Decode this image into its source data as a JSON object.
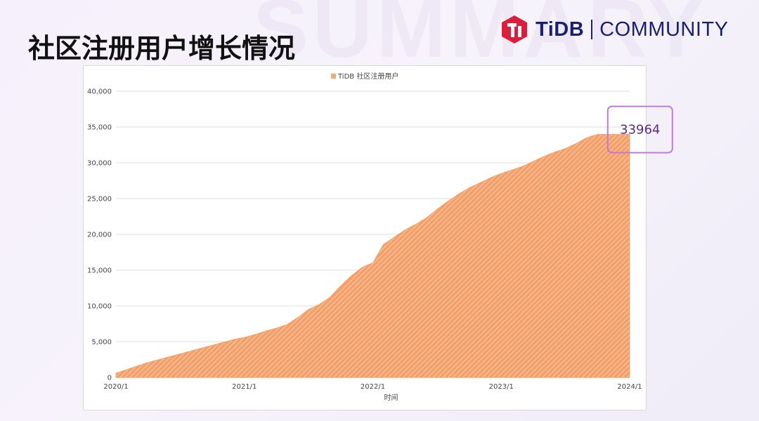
{
  "slide": {
    "title": "社区注册用户增长情况",
    "watermark": "SUMMARY"
  },
  "logo": {
    "icon": "tidb-logo-icon",
    "brand": "TiDB",
    "product": "COMMUNITY",
    "brand_color": "#dc1e3c",
    "text_color": "#1a1f71"
  },
  "chart_data": {
    "type": "area",
    "title": "",
    "xlabel": "时间",
    "ylabel": "",
    "ylim": [
      0,
      40000
    ],
    "yticks": [
      0,
      5000,
      10000,
      15000,
      20000,
      25000,
      30000,
      35000,
      40000
    ],
    "ytick_labels": [
      "0",
      "5,000",
      "10,000",
      "15,000",
      "20,000",
      "25,000",
      "30,000",
      "35,000",
      "40,000"
    ],
    "xlim": [
      "2020-01",
      "2024-01"
    ],
    "xtick_labels": [
      "2020/1",
      "2021/1",
      "2022/1",
      "2023/1",
      "2024/1"
    ],
    "legend_position": "top",
    "grid": "horizontal",
    "fill_color": "#f4a06a",
    "fill_pattern": "diagonal-hatch",
    "series": [
      {
        "name": "TiDB 社区注册用户",
        "x": [
          "2020-01",
          "2020-02",
          "2020-03",
          "2020-04",
          "2020-05",
          "2020-06",
          "2020-07",
          "2020-08",
          "2020-09",
          "2020-10",
          "2020-11",
          "2020-12",
          "2021-01",
          "2021-02",
          "2021-03",
          "2021-04",
          "2021-05",
          "2021-06",
          "2021-07",
          "2021-08",
          "2021-09",
          "2021-10",
          "2021-11",
          "2021-12",
          "2022-01",
          "2022-02",
          "2022-03",
          "2022-04",
          "2022-05",
          "2022-06",
          "2022-07",
          "2022-08",
          "2022-09",
          "2022-10",
          "2022-11",
          "2022-12",
          "2023-01",
          "2023-02",
          "2023-03",
          "2023-04",
          "2023-05",
          "2023-06",
          "2023-07",
          "2023-08",
          "2023-09",
          "2023-10",
          "2023-11",
          "2023-12",
          "2024-01"
        ],
        "values": [
          600,
          1100,
          1600,
          2100,
          2500,
          2900,
          3300,
          3700,
          4100,
          4500,
          4900,
          5300,
          5600,
          6000,
          6500,
          6900,
          7400,
          8400,
          9500,
          10200,
          11200,
          12800,
          14200,
          15400,
          16000,
          18600,
          19600,
          20600,
          21400,
          22300,
          23500,
          24600,
          25600,
          26500,
          27200,
          27900,
          28500,
          29000,
          29500,
          30200,
          30900,
          31500,
          32000,
          32700,
          33500,
          33964,
          33964,
          33964,
          33964
        ]
      }
    ],
    "annotation": {
      "text": "33964",
      "x": "2023-12",
      "y": 33964,
      "border_color": "#c07ad6",
      "text_color": "#5b2a86"
    }
  }
}
